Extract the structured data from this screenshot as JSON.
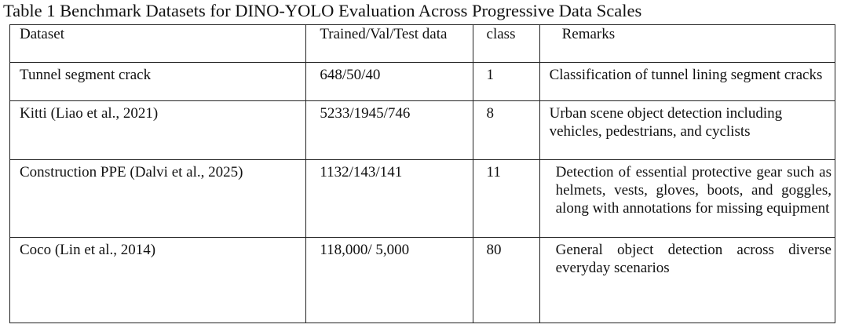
{
  "caption": "Table 1 Benchmark Datasets for DINO-YOLO Evaluation Across Progressive Data Scales",
  "table": {
    "headers": [
      "Dataset",
      "Trained/Val/Test data",
      "class",
      "Remarks"
    ],
    "rows": [
      [
        "Tunnel segment crack",
        "648/50/40",
        "1",
        "Classification of tunnel lining segment cracks"
      ],
      [
        "Kitti (Liao et al., 2021)",
        "5233/1945/746",
        "8",
        "Urban scene object detection including vehicles, pedestrians, and cyclists"
      ],
      [
        "Construction PPE (Dalvi et al., 2025)",
        "1132/143/141",
        "11",
        "Detection of essential protective gear such as helmets, vests, gloves, boots, and goggles, along with annotations for missing equipment"
      ],
      [
        "Coco (Lin et al., 2014)",
        "118,000/ 5,000",
        "80",
        "General object detection across diverse everyday scenarios"
      ]
    ]
  }
}
